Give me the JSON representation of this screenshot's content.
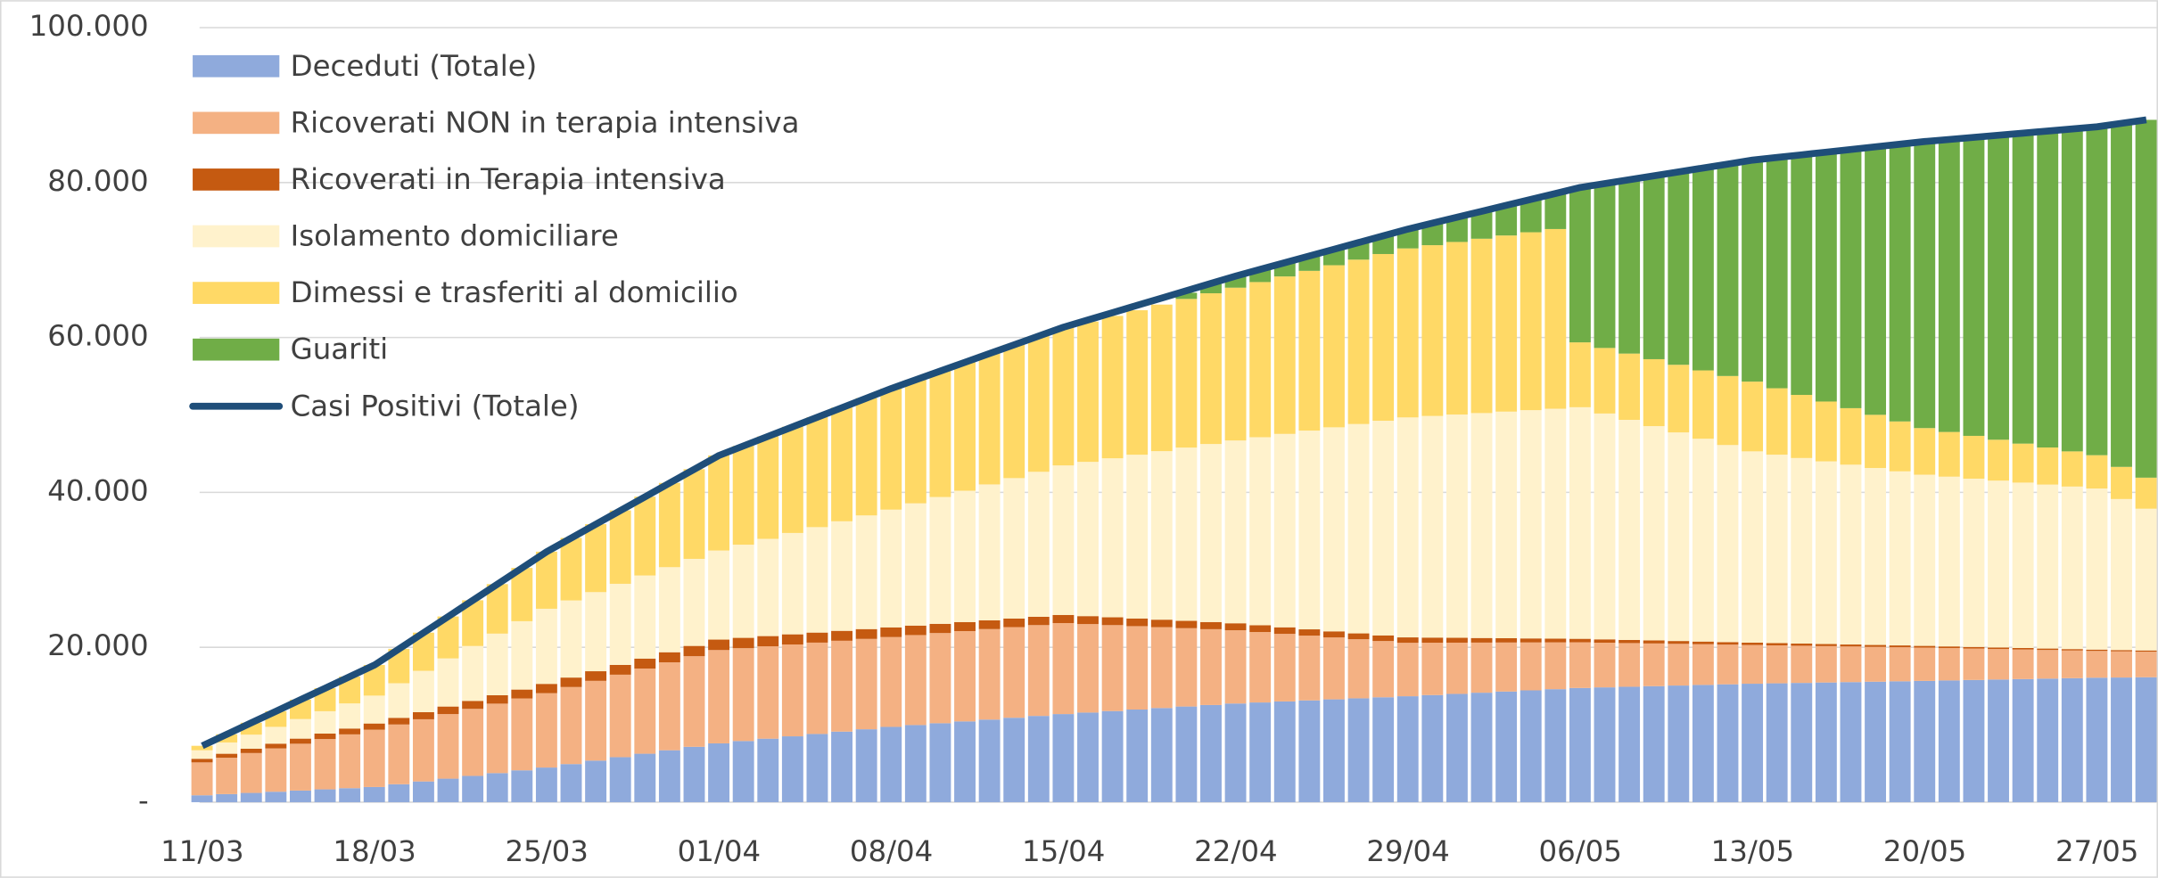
{
  "chart_data": {
    "type": "bar",
    "stacked": true,
    "categories": [
      "11/03",
      null,
      null,
      null,
      null,
      null,
      null,
      "18/03",
      null,
      null,
      null,
      null,
      null,
      null,
      "25/03",
      null,
      null,
      null,
      null,
      null,
      null,
      "01/04",
      null,
      null,
      null,
      null,
      null,
      null,
      "08/04",
      null,
      null,
      null,
      null,
      null,
      null,
      "15/04",
      null,
      null,
      null,
      null,
      null,
      null,
      "22/04",
      null,
      null,
      null,
      null,
      null,
      null,
      "29/04",
      null,
      null,
      null,
      null,
      null,
      null,
      "06/05",
      null,
      null,
      null,
      null,
      null,
      null,
      "13/05",
      null,
      null,
      null,
      null,
      null,
      null,
      "20/05",
      null,
      null,
      null,
      null,
      null,
      null,
      "27/05",
      null,
      null
    ],
    "ylim": [
      0,
      100000
    ],
    "yticks": [
      {
        "value": 0,
        "label": "-"
      },
      {
        "value": 20000,
        "label": "20.000"
      },
      {
        "value": 40000,
        "label": "40.000"
      },
      {
        "value": 60000,
        "label": "60.000"
      },
      {
        "value": 80000,
        "label": "80.000"
      },
      {
        "value": 100000,
        "label": "100.000"
      }
    ],
    "grid": true,
    "legend": "upper left",
    "series": [
      {
        "name": "Deceduti (Totale)",
        "color": "#8faadc",
        "values": [
          890,
          1043,
          1196,
          1349,
          1502,
          1655,
          1808,
          1959,
          2318,
          2677,
          3036,
          3395,
          3754,
          4113,
          4474,
          4920,
          5366,
          5812,
          6258,
          6704,
          7150,
          7593,
          7897,
          8201,
          8505,
          8809,
          9113,
          9417,
          9722,
          9958,
          10194,
          10430,
          10666,
          10902,
          11138,
          11377,
          11572,
          11767,
          11962,
          12157,
          12352,
          12547,
          12740,
          12874,
          13008,
          13142,
          13276,
          13410,
          13544,
          13679,
          13831,
          13983,
          14135,
          14287,
          14439,
          14591,
          14745,
          14824,
          14903,
          14982,
          15061,
          15140,
          15219,
          15296,
          15348,
          15400,
          15452,
          15504,
          15556,
          15608,
          15662,
          15720,
          15778,
          15836,
          15894,
          15952,
          16010,
          16071,
          16097,
          16130
        ]
      },
      {
        "name": "Ricoverati NON in terapia intensiva",
        "color": "#f4b183",
        "values": [
          4247,
          4697,
          5147,
          5597,
          6047,
          6497,
          6947,
          7400,
          7714,
          8028,
          8342,
          8656,
          8970,
          9284,
          9600,
          9950,
          10300,
          10650,
          11000,
          11350,
          11700,
          12050,
          11986,
          11922,
          11858,
          11794,
          11730,
          11666,
          11600,
          11621,
          11642,
          11663,
          11684,
          11705,
          11726,
          11750,
          11423,
          11096,
          10769,
          10442,
          10115,
          9788,
          9460,
          9094,
          8728,
          8362,
          7996,
          7630,
          7264,
          6900,
          6757,
          6614,
          6471,
          6328,
          6185,
          6042,
          5900,
          5771,
          5642,
          5513,
          5384,
          5255,
          5126,
          5000,
          4900,
          4800,
          4700,
          4600,
          4500,
          4400,
          4300,
          4180,
          4060,
          3940,
          3820,
          3700,
          3580,
          3460,
          3380,
          3300
        ]
      },
      {
        "name": "Ricoverati in Terapia intensiva",
        "color": "#c55a11",
        "values": [
          466,
          514,
          562,
          610,
          658,
          706,
          754,
          800,
          857,
          914,
          971,
          1028,
          1085,
          1142,
          1200,
          1221,
          1242,
          1263,
          1284,
          1305,
          1326,
          1350,
          1336,
          1322,
          1308,
          1294,
          1280,
          1266,
          1250,
          1221,
          1192,
          1163,
          1134,
          1105,
          1076,
          1050,
          1029,
          1008,
          987,
          966,
          945,
          924,
          900,
          871,
          842,
          813,
          784,
          755,
          726,
          700,
          664,
          628,
          592,
          556,
          520,
          484,
          450,
          429,
          408,
          387,
          366,
          345,
          324,
          300,
          289,
          278,
          267,
          256,
          245,
          234,
          220,
          213,
          206,
          199,
          192,
          185,
          178,
          170,
          165,
          160
        ]
      },
      {
        "name": "Isolamento domiciliare",
        "color": "#fff2cc",
        "values": [
          1100,
          1457,
          1814,
          2171,
          2528,
          2885,
          3242,
          3600,
          4471,
          5342,
          6213,
          7084,
          7955,
          8826,
          9700,
          9957,
          10214,
          10471,
          10728,
          10985,
          11242,
          11500,
          12029,
          12558,
          13087,
          13616,
          14145,
          14674,
          15200,
          15786,
          16372,
          16958,
          17544,
          18130,
          18716,
          19300,
          19914,
          20528,
          21142,
          21756,
          22370,
          22984,
          23600,
          24286,
          24972,
          25658,
          26344,
          27030,
          27716,
          28400,
          28614,
          28828,
          29042,
          29256,
          29470,
          29684,
          29900,
          29157,
          28414,
          27671,
          26928,
          26185,
          25442,
          24700,
          24329,
          23958,
          23587,
          23216,
          22845,
          22474,
          22100,
          21914,
          21728,
          21542,
          21356,
          21170,
          20984,
          20800,
          19500,
          18300
        ]
      },
      {
        "name": "Dimessi e trasferiti al domicilio",
        "color": "#ffd966",
        "values": [
          577,
          1059,
          1541,
          2023,
          2505,
          2987,
          3469,
          3954,
          4442,
          4930,
          5418,
          5906,
          6394,
          6882,
          7372,
          8073,
          8774,
          9475,
          10176,
          10877,
          11578,
          12280,
          12760,
          13240,
          13720,
          14200,
          14680,
          15160,
          15642,
          15957,
          16272,
          16587,
          16902,
          17217,
          17532,
          17849,
          18118,
          18387,
          18656,
          18925,
          19194,
          19463,
          19731,
          20030,
          20329,
          20628,
          20927,
          21226,
          21525,
          21821,
          22050,
          22280,
          22510,
          22740,
          22970,
          23200,
          8374,
          8464,
          8554,
          8644,
          8734,
          8824,
          8914,
          9004,
          8577,
          8150,
          7723,
          7296,
          6869,
          6442,
          6018,
          5772,
          5526,
          5280,
          5034,
          4788,
          4542,
          4299,
          4150,
          4010
        ]
      },
      {
        "name": "Guariti",
        "color": "#70ad47",
        "values": [
          0,
          0,
          0,
          0,
          0,
          0,
          0,
          0,
          0,
          0,
          0,
          0,
          0,
          0,
          0,
          0,
          0,
          0,
          0,
          0,
          0,
          0,
          0,
          0,
          0,
          0,
          0,
          0,
          0,
          0,
          0,
          0,
          0,
          0,
          0,
          0,
          0,
          0,
          0,
          0,
          800,
          1200,
          1500,
          1640,
          1780,
          1920,
          2060,
          2200,
          2340,
          2500,
          2830,
          3160,
          3490,
          3820,
          4150,
          4500,
          20000,
          21230,
          22460,
          23690,
          24920,
          26150,
          27380,
          28600,
          29800,
          31000,
          32200,
          33400,
          34600,
          35800,
          37000,
          37770,
          38540,
          39310,
          40080,
          40850,
          41620,
          42400,
          44300,
          46200
        ]
      },
      {
        "name": "Casi Positivi (Totale)",
        "color": "#1f4e79",
        "type": "line",
        "values": [
          7280,
          8770,
          10260,
          11750,
          13240,
          14730,
          16220,
          17713,
          19803,
          21893,
          23983,
          26073,
          28163,
          30253,
          32346,
          34121,
          35896,
          37671,
          39446,
          41221,
          42996,
          44773,
          46007,
          47241,
          48475,
          49709,
          50943,
          52177,
          53414,
          54544,
          55674,
          56804,
          57934,
          59064,
          60194,
          61326,
          62270,
          63214,
          64158,
          65102,
          66046,
          66990,
          67931,
          68798,
          69665,
          70532,
          71399,
          72266,
          73133,
          74000,
          74767,
          75534,
          76301,
          77068,
          77835,
          78602,
          79369,
          79873,
          80377,
          80881,
          81385,
          81889,
          82393,
          82900,
          83243,
          83586,
          83929,
          84272,
          84615,
          84958,
          85300,
          85571,
          85842,
          86113,
          86384,
          86655,
          86926,
          87200,
          87650,
          88100
        ]
      }
    ]
  }
}
